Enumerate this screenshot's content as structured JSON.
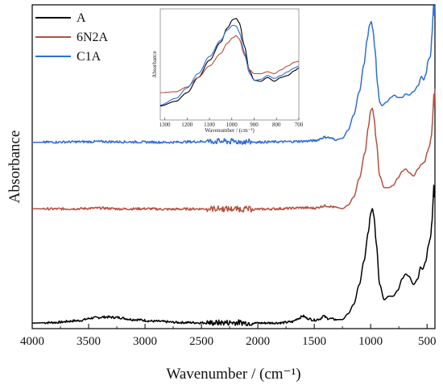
{
  "chart_data": {
    "type": "line",
    "xlabel": "Wavenumber / (cm⁻¹)",
    "ylabel": "Absorbance",
    "xlim": [
      4000,
      430
    ],
    "x_reversed": true,
    "y_ticks_shown": false,
    "x_ticks": [
      4000,
      3500,
      3000,
      2500,
      2000,
      1500,
      1000,
      500
    ],
    "legend_position": "top-left",
    "colors": {
      "A": "#000000",
      "6N2A": "#b5503f",
      "C1A": "#2e6fd6"
    },
    "series": [
      {
        "name": "A",
        "color": "#000000",
        "points": [
          [
            4000,
            0.02
          ],
          [
            3800,
            0.025
          ],
          [
            3600,
            0.04
          ],
          [
            3450,
            0.065
          ],
          [
            3350,
            0.072
          ],
          [
            3250,
            0.068
          ],
          [
            3100,
            0.05
          ],
          [
            2900,
            0.035
          ],
          [
            2700,
            0.025
          ],
          [
            2400,
            0.022
          ],
          [
            2200,
            0.025
          ],
          [
            2000,
            0.02
          ],
          [
            1800,
            0.022
          ],
          [
            1700,
            0.03
          ],
          [
            1640,
            0.06
          ],
          [
            1600,
            0.08
          ],
          [
            1560,
            0.06
          ],
          [
            1500,
            0.045
          ],
          [
            1450,
            0.055
          ],
          [
            1420,
            0.08
          ],
          [
            1380,
            0.06
          ],
          [
            1300,
            0.05
          ],
          [
            1250,
            0.05
          ],
          [
            1200,
            0.1
          ],
          [
            1150,
            0.18
          ],
          [
            1100,
            0.35
          ],
          [
            1060,
            0.55
          ],
          [
            1020,
            0.8
          ],
          [
            1000,
            0.96
          ],
          [
            985,
            1.0
          ],
          [
            970,
            0.93
          ],
          [
            950,
            0.7
          ],
          [
            920,
            0.35
          ],
          [
            880,
            0.22
          ],
          [
            840,
            0.25
          ],
          [
            800,
            0.25
          ],
          [
            760,
            0.3
          ],
          [
            720,
            0.4
          ],
          [
            690,
            0.44
          ],
          [
            660,
            0.42
          ],
          [
            620,
            0.35
          ],
          [
            580,
            0.4
          ],
          [
            560,
            0.5
          ],
          [
            540,
            0.48
          ],
          [
            510,
            0.55
          ],
          [
            490,
            0.68
          ],
          [
            470,
            0.75
          ],
          [
            455,
            0.9
          ],
          [
            445,
            1.1
          ],
          [
            440,
            1.2
          ],
          [
            435,
            1.1
          ],
          [
            430,
            1.15
          ]
        ]
      },
      {
        "name": "6N2A",
        "color": "#b5503f",
        "points": [
          [
            4000,
            0.02
          ],
          [
            3800,
            0.018
          ],
          [
            3600,
            0.02
          ],
          [
            3400,
            0.025
          ],
          [
            3200,
            0.018
          ],
          [
            3000,
            0.02
          ],
          [
            2800,
            0.015
          ],
          [
            2600,
            0.018
          ],
          [
            2400,
            0.02
          ],
          [
            2200,
            0.018
          ],
          [
            2000,
            0.015
          ],
          [
            1800,
            0.02
          ],
          [
            1600,
            0.028
          ],
          [
            1500,
            0.025
          ],
          [
            1400,
            0.045
          ],
          [
            1300,
            0.03
          ],
          [
            1250,
            0.02
          ],
          [
            1200,
            0.05
          ],
          [
            1150,
            0.12
          ],
          [
            1100,
            0.28
          ],
          [
            1050,
            0.5
          ],
          [
            1020,
            0.72
          ],
          [
            1000,
            0.86
          ],
          [
            985,
            0.88
          ],
          [
            970,
            0.8
          ],
          [
            950,
            0.6
          ],
          [
            920,
            0.3
          ],
          [
            880,
            0.2
          ],
          [
            840,
            0.2
          ],
          [
            800,
            0.22
          ],
          [
            760,
            0.28
          ],
          [
            720,
            0.34
          ],
          [
            690,
            0.36
          ],
          [
            660,
            0.33
          ],
          [
            620,
            0.3
          ],
          [
            580,
            0.36
          ],
          [
            550,
            0.4
          ],
          [
            520,
            0.42
          ],
          [
            500,
            0.5
          ],
          [
            480,
            0.55
          ],
          [
            460,
            0.65
          ],
          [
            450,
            0.8
          ],
          [
            440,
            1.0
          ],
          [
            435,
            0.9
          ],
          [
            430,
            1.05
          ]
        ]
      },
      {
        "name": "C1A",
        "color": "#2e6fd6",
        "points": [
          [
            4000,
            0.015
          ],
          [
            3800,
            0.018
          ],
          [
            3600,
            0.02
          ],
          [
            3400,
            0.022
          ],
          [
            3200,
            0.02
          ],
          [
            3000,
            0.018
          ],
          [
            2800,
            0.016
          ],
          [
            2600,
            0.02
          ],
          [
            2400,
            0.025
          ],
          [
            2200,
            0.022
          ],
          [
            2000,
            0.018
          ],
          [
            1800,
            0.02
          ],
          [
            1600,
            0.025
          ],
          [
            1500,
            0.03
          ],
          [
            1400,
            0.06
          ],
          [
            1300,
            0.04
          ],
          [
            1250,
            0.05
          ],
          [
            1200,
            0.12
          ],
          [
            1150,
            0.25
          ],
          [
            1100,
            0.45
          ],
          [
            1060,
            0.68
          ],
          [
            1030,
            0.9
          ],
          [
            1010,
            1.02
          ],
          [
            995,
            1.05
          ],
          [
            980,
            0.98
          ],
          [
            960,
            0.8
          ],
          [
            940,
            0.52
          ],
          [
            920,
            0.36
          ],
          [
            900,
            0.33
          ],
          [
            860,
            0.36
          ],
          [
            820,
            0.4
          ],
          [
            790,
            0.42
          ],
          [
            760,
            0.4
          ],
          [
            720,
            0.4
          ],
          [
            690,
            0.43
          ],
          [
            660,
            0.42
          ],
          [
            620,
            0.45
          ],
          [
            580,
            0.5
          ],
          [
            550,
            0.58
          ],
          [
            530,
            0.55
          ],
          [
            510,
            0.6
          ],
          [
            490,
            0.72
          ],
          [
            470,
            0.75
          ],
          [
            455,
            0.95
          ],
          [
            445,
            1.15
          ],
          [
            440,
            1.25
          ],
          [
            435,
            1.1
          ],
          [
            430,
            1.25
          ]
        ]
      }
    ],
    "inset": {
      "xlabel": "Wavenumber / (cm⁻¹)",
      "ylabel": "Absorbance",
      "xlim": [
        1320,
        700
      ],
      "x_ticks": [
        1300,
        1200,
        1100,
        1000,
        900,
        800,
        700
      ],
      "series": [
        {
          "name": "A",
          "color": "#000000",
          "points": [
            [
              1320,
              0.08
            ],
            [
              1250,
              0.13
            ],
            [
              1200,
              0.22
            ],
            [
              1150,
              0.38
            ],
            [
              1100,
              0.56
            ],
            [
              1050,
              0.75
            ],
            [
              1020,
              0.9
            ],
            [
              995,
              0.99
            ],
            [
              980,
              1.0
            ],
            [
              965,
              0.95
            ],
            [
              945,
              0.72
            ],
            [
              920,
              0.45
            ],
            [
              900,
              0.35
            ],
            [
              870,
              0.34
            ],
            [
              840,
              0.38
            ],
            [
              810,
              0.34
            ],
            [
              780,
              0.38
            ],
            [
              750,
              0.4
            ],
            [
              720,
              0.45
            ],
            [
              700,
              0.48
            ]
          ]
        },
        {
          "name": "6N2A",
          "color": "#b5503f",
          "points": [
            [
              1320,
              0.22
            ],
            [
              1250,
              0.23
            ],
            [
              1200,
              0.28
            ],
            [
              1150,
              0.38
            ],
            [
              1100,
              0.5
            ],
            [
              1050,
              0.63
            ],
            [
              1020,
              0.74
            ],
            [
              995,
              0.8
            ],
            [
              980,
              0.82
            ],
            [
              965,
              0.78
            ],
            [
              945,
              0.62
            ],
            [
              920,
              0.46
            ],
            [
              900,
              0.42
            ],
            [
              870,
              0.42
            ],
            [
              840,
              0.44
            ],
            [
              810,
              0.42
            ],
            [
              780,
              0.46
            ],
            [
              750,
              0.5
            ],
            [
              720,
              0.54
            ],
            [
              700,
              0.55
            ]
          ]
        },
        {
          "name": "C1A",
          "color": "#2e6fd6",
          "points": [
            [
              1320,
              0.09
            ],
            [
              1250,
              0.16
            ],
            [
              1200,
              0.27
            ],
            [
              1150,
              0.42
            ],
            [
              1100,
              0.6
            ],
            [
              1050,
              0.77
            ],
            [
              1020,
              0.88
            ],
            [
              995,
              0.93
            ],
            [
              980,
              0.92
            ],
            [
              965,
              0.85
            ],
            [
              945,
              0.65
            ],
            [
              920,
              0.42
            ],
            [
              900,
              0.35
            ],
            [
              870,
              0.36
            ],
            [
              840,
              0.4
            ],
            [
              810,
              0.37
            ],
            [
              780,
              0.4
            ],
            [
              750,
              0.44
            ],
            [
              720,
              0.48
            ],
            [
              700,
              0.5
            ]
          ]
        }
      ]
    }
  }
}
